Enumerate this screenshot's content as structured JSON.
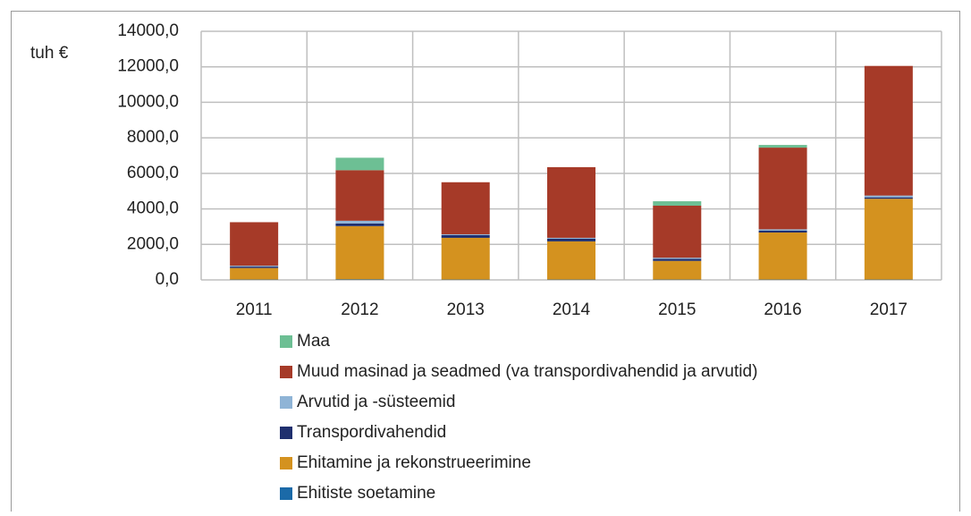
{
  "chart_data": {
    "type": "stacked_bar",
    "y_label": "tuh €",
    "categories": [
      "2011",
      "2012",
      "2013",
      "2014",
      "2015",
      "2016",
      "2017"
    ],
    "series": [
      {
        "name": "Ehitiste soetamine",
        "color": "#1b6aa8",
        "values": [
          20,
          30,
          20,
          20,
          20,
          20,
          20
        ]
      },
      {
        "name": "Ehitamine ja rekonstrueerimine",
        "color": "#d4921f",
        "values": [
          650,
          3000,
          2350,
          2150,
          1050,
          2650,
          4550
        ]
      },
      {
        "name": "Transpordivahendid",
        "color": "#1f2f6e",
        "values": [
          80,
          150,
          150,
          150,
          120,
          100,
          80
        ]
      },
      {
        "name": "Arvutid ja -süsteemid",
        "color": "#8fb4d6",
        "values": [
          50,
          150,
          50,
          50,
          60,
          80,
          100
        ]
      },
      {
        "name": "Muud masinad ja seadmed (va transpordivahendid ja arvutid)",
        "color": "#a63a28",
        "values": [
          2450,
          2850,
          2930,
          3980,
          2930,
          4600,
          7300
        ]
      },
      {
        "name": "Maa",
        "color": "#6dbf94",
        "values": [
          0,
          700,
          0,
          0,
          250,
          150,
          0
        ]
      }
    ],
    "ylim": [
      0,
      14000
    ],
    "yticks": [
      {
        "value": 0,
        "label": "0,0"
      },
      {
        "value": 2000,
        "label": "2000,0"
      },
      {
        "value": 4000,
        "label": "4000,0"
      },
      {
        "value": 6000,
        "label": "6000,0"
      },
      {
        "value": 8000,
        "label": "8000,0"
      },
      {
        "value": 10000,
        "label": "10000,0"
      },
      {
        "value": 12000,
        "label": "12000,0"
      },
      {
        "value": 14000,
        "label": "14000,0"
      }
    ],
    "grid": true,
    "legend": "bottom"
  }
}
